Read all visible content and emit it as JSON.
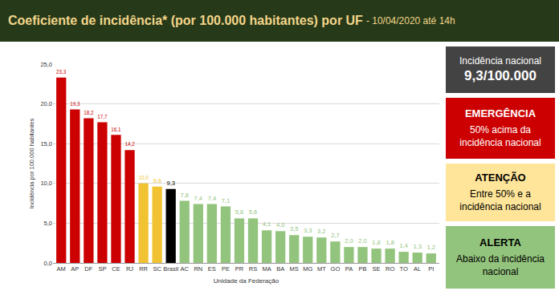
{
  "chart_data": {
    "type": "bar",
    "title": "Coeficiente de incidência* (por 100.000 habitantes) por UF",
    "subtitle": "- 10/04/2020 até 14h",
    "x_label": "Unidade da Federação",
    "y_label": "Incidência por 100.000 habitantes",
    "categories": [
      "AM",
      "AP",
      "DF",
      "SP",
      "CE",
      "RJ",
      "RR",
      "SC",
      "Brasil",
      "AC",
      "RN",
      "ES",
      "PE",
      "PR",
      "RS",
      "MA",
      "BA",
      "MS",
      "MG",
      "MT",
      "GO",
      "PA",
      "PB",
      "SE",
      "RO",
      "TO",
      "AL",
      "PI"
    ],
    "values": [
      23.3,
      19.3,
      18.2,
      17.7,
      16.1,
      14.2,
      10.0,
      9.6,
      9.3,
      7.8,
      7.4,
      7.4,
      7.1,
      5.6,
      5.6,
      4.1,
      4.0,
      3.5,
      3.3,
      3.2,
      2.7,
      2.0,
      2.0,
      1.8,
      1.8,
      1.4,
      1.3,
      1.2
    ],
    "value_labels": [
      "23,3",
      "19,3",
      "18,2",
      "17,7",
      "16,1",
      "14,2",
      "10,0",
      "9,6",
      "9,3",
      "7,8",
      "7,4",
      "7,4",
      "7,1",
      "5,6",
      "5,6",
      "4,1",
      "4,0",
      "3,5",
      "3,3",
      "3,2",
      "2,7",
      "2,0",
      "2,0",
      "1,8",
      "1,8",
      "1,4",
      "1,3",
      "1,2"
    ],
    "colors": [
      "#cc0000",
      "#cc0000",
      "#cc0000",
      "#cc0000",
      "#cc0000",
      "#cc0000",
      "#f1c232",
      "#f1c232",
      "#000000",
      "#93c47d",
      "#93c47d",
      "#93c47d",
      "#93c47d",
      "#93c47d",
      "#93c47d",
      "#93c47d",
      "#93c47d",
      "#93c47d",
      "#93c47d",
      "#93c47d",
      "#93c47d",
      "#93c47d",
      "#93c47d",
      "#93c47d",
      "#93c47d",
      "#93c47d",
      "#93c47d",
      "#93c47d"
    ],
    "ylim": [
      0,
      25
    ],
    "yticks": [
      {
        "value": 0,
        "label": "0,0"
      },
      {
        "value": 5,
        "label": "5,0"
      },
      {
        "value": 10,
        "label": "10,0"
      },
      {
        "value": 15,
        "label": "15,0"
      },
      {
        "value": 20,
        "label": "20,0"
      },
      {
        "value": 25,
        "label": "25,0"
      }
    ],
    "grid": true,
    "data_labels": true
  },
  "side_panel": {
    "national": {
      "label": "Incidência nacional",
      "value": "9,3/100.000",
      "color": "#434343"
    },
    "levels": [
      {
        "title": "EMERGÊNCIA",
        "description": "50% acima da incidência nacional",
        "color": "#cc0000",
        "text_color": "#ffffff"
      },
      {
        "title": "ATENÇÃO",
        "description": "Entre 50% e a incidência nacional",
        "color": "#ffe599",
        "text_color": "#000000"
      },
      {
        "title": "ALERTA",
        "description": "Abaixo da incidência nacional",
        "color": "#93c47d",
        "text_color": "#000000"
      }
    ]
  }
}
